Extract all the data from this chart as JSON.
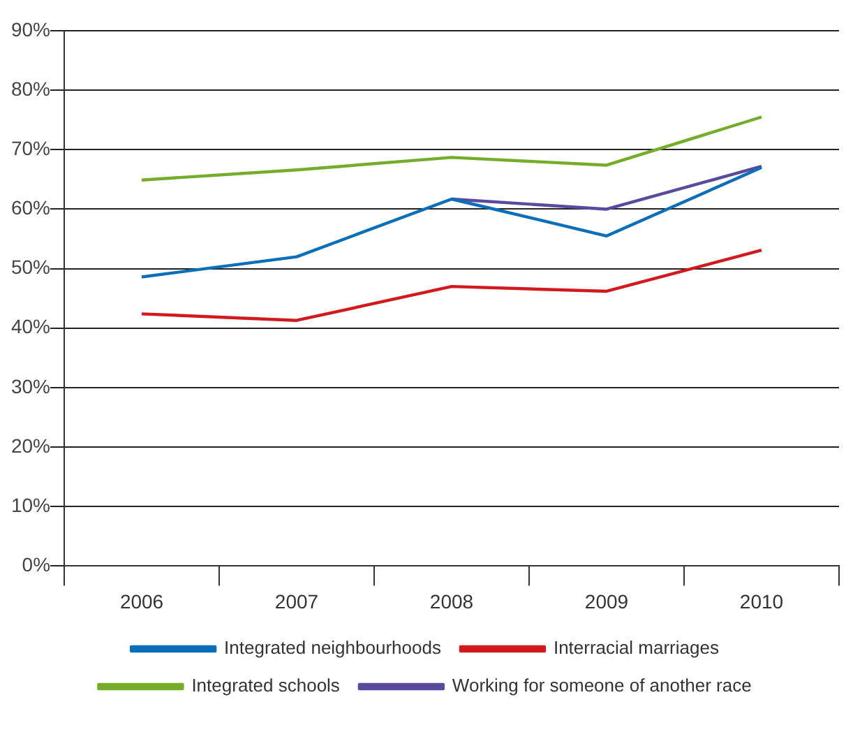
{
  "chart_data": {
    "type": "line",
    "categories": [
      "2006",
      "2007",
      "2008",
      "2009",
      "2010"
    ],
    "series": [
      {
        "name": "Integrated neighbourhoods",
        "color": "#0a6fb8",
        "values": [
          48.6,
          52,
          61.7,
          55.5,
          67
        ]
      },
      {
        "name": "Interracial marriages",
        "color": "#d2191d",
        "values": [
          42.4,
          41.3,
          47,
          46.2,
          53.1
        ]
      },
      {
        "name": "Integrated schools",
        "color": "#74ad2a",
        "values": [
          64.9,
          66.6,
          68.7,
          67.4,
          75.5
        ]
      },
      {
        "name": "Working for someone of another race",
        "color": "#5a4a9e",
        "values": [
          null,
          null,
          61.7,
          60,
          67.2
        ]
      }
    ],
    "ylim": [
      0,
      90
    ],
    "yticks": [
      {
        "value": 0,
        "label": "0%"
      },
      {
        "value": 10,
        "label": "10%"
      },
      {
        "value": 20,
        "label": "20%"
      },
      {
        "value": 30,
        "label": "30%"
      },
      {
        "value": 40,
        "label": "40%"
      },
      {
        "value": 50,
        "label": "50%"
      },
      {
        "value": 60,
        "label": "60%"
      },
      {
        "value": 70,
        "label": "70%"
      },
      {
        "value": 80,
        "label": "80%"
      },
      {
        "value": 90,
        "label": "90%"
      }
    ],
    "grid": "y",
    "legend": "bottom",
    "marker": "none",
    "line_style": "solid"
  }
}
